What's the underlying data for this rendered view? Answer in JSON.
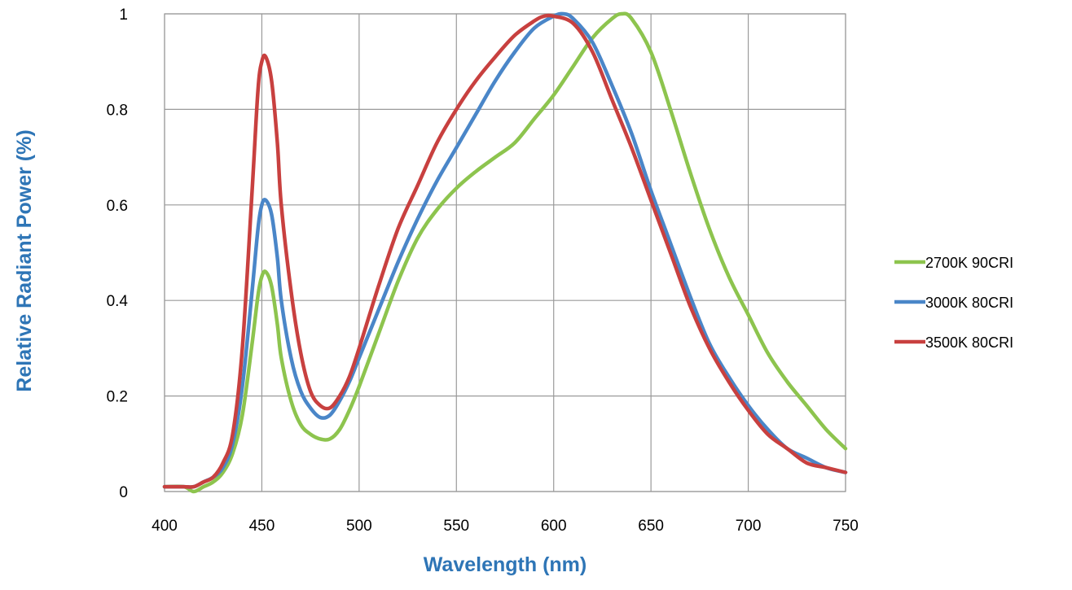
{
  "chart_data": {
    "type": "line",
    "title": "",
    "xlabel": "Wavelength (nm)",
    "ylabel": "Relative Radiant Power (%)",
    "xlim": [
      400,
      750
    ],
    "ylim": [
      0,
      1
    ],
    "x_ticks": [
      "400",
      "450",
      "500",
      "550",
      "600",
      "650",
      "700",
      "750"
    ],
    "y_ticks": [
      "0",
      "0.2",
      "0.4",
      "0.6",
      "0.8",
      "1"
    ],
    "grid": true,
    "legend_position": "right",
    "axis_title_color": "#2E75B6",
    "series": [
      {
        "name": "2700K 90CRI",
        "color": "#8DC44E",
        "x": [
          400,
          410,
          415,
          420,
          425,
          430,
          435,
          440,
          445,
          448,
          450,
          452,
          455,
          458,
          460,
          465,
          470,
          475,
          480,
          485,
          490,
          495,
          500,
          510,
          520,
          530,
          540,
          550,
          560,
          570,
          580,
          590,
          600,
          610,
          620,
          630,
          635,
          640,
          650,
          660,
          670,
          680,
          690,
          700,
          710,
          720,
          730,
          740,
          750
        ],
        "y": [
          0.01,
          0.01,
          0.0,
          0.01,
          0.02,
          0.04,
          0.08,
          0.16,
          0.31,
          0.41,
          0.45,
          0.46,
          0.43,
          0.35,
          0.28,
          0.19,
          0.14,
          0.12,
          0.11,
          0.11,
          0.13,
          0.17,
          0.22,
          0.33,
          0.44,
          0.53,
          0.59,
          0.635,
          0.67,
          0.7,
          0.73,
          0.78,
          0.83,
          0.89,
          0.95,
          0.99,
          1.0,
          0.99,
          0.92,
          0.8,
          0.67,
          0.55,
          0.45,
          0.37,
          0.29,
          0.23,
          0.18,
          0.13,
          0.09
        ]
      },
      {
        "name": "3000K 80CRI",
        "color": "#4A86C8",
        "x": [
          400,
          410,
          415,
          420,
          425,
          430,
          435,
          440,
          445,
          448,
          450,
          452,
          455,
          458,
          460,
          465,
          470,
          475,
          480,
          485,
          490,
          495,
          500,
          510,
          520,
          530,
          540,
          550,
          560,
          570,
          580,
          590,
          600,
          605,
          610,
          620,
          630,
          640,
          650,
          660,
          670,
          680,
          690,
          700,
          710,
          720,
          730,
          740,
          750
        ],
        "y": [
          0.01,
          0.01,
          0.01,
          0.02,
          0.03,
          0.05,
          0.1,
          0.22,
          0.42,
          0.55,
          0.6,
          0.61,
          0.58,
          0.49,
          0.4,
          0.28,
          0.21,
          0.175,
          0.155,
          0.16,
          0.19,
          0.23,
          0.28,
          0.38,
          0.48,
          0.57,
          0.65,
          0.72,
          0.79,
          0.86,
          0.92,
          0.97,
          0.995,
          1.0,
          0.99,
          0.94,
          0.85,
          0.75,
          0.63,
          0.52,
          0.41,
          0.31,
          0.24,
          0.18,
          0.13,
          0.09,
          0.07,
          0.05,
          0.04
        ]
      },
      {
        "name": "3500K 80CRI",
        "color": "#C8403F",
        "x": [
          400,
          410,
          415,
          420,
          425,
          430,
          435,
          440,
          445,
          448,
          450,
          452,
          455,
          458,
          460,
          465,
          470,
          475,
          480,
          485,
          490,
          495,
          500,
          510,
          520,
          530,
          540,
          550,
          560,
          570,
          580,
          590,
          595,
          600,
          610,
          620,
          630,
          640,
          650,
          660,
          670,
          680,
          690,
          700,
          710,
          720,
          730,
          740,
          750
        ],
        "y": [
          0.01,
          0.01,
          0.01,
          0.02,
          0.03,
          0.06,
          0.12,
          0.3,
          0.63,
          0.84,
          0.9,
          0.91,
          0.86,
          0.73,
          0.6,
          0.42,
          0.29,
          0.21,
          0.18,
          0.175,
          0.2,
          0.24,
          0.3,
          0.43,
          0.55,
          0.64,
          0.73,
          0.8,
          0.86,
          0.91,
          0.955,
          0.985,
          0.995,
          0.995,
          0.98,
          0.92,
          0.82,
          0.72,
          0.61,
          0.5,
          0.39,
          0.3,
          0.23,
          0.17,
          0.12,
          0.09,
          0.06,
          0.05,
          0.04
        ]
      }
    ]
  }
}
